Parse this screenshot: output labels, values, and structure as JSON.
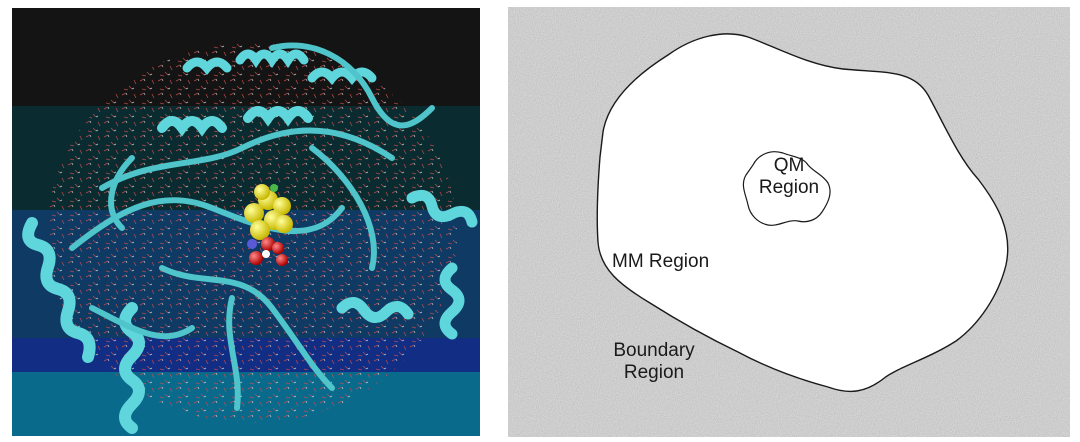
{
  "left_panel": {
    "background_bands": [
      "#141414",
      "#0a2c30",
      "#0e3a64",
      "#112e84",
      "#0a6a8c"
    ],
    "protein_color": "#5fd6dc",
    "highlight_colors": [
      "#f2e61a",
      "#e51d1d",
      "#5a5ad8",
      "#ffffff"
    ]
  },
  "right_panel": {
    "background_color": "#d9d9d9",
    "mm_region": {
      "label": "MM Region",
      "fill": "#ffffff"
    },
    "qm_region": {
      "label_line1": "QM",
      "label_line2": "Region"
    },
    "boundary_region": {
      "label_line1": "Boundary",
      "label_line2": "Region"
    }
  }
}
